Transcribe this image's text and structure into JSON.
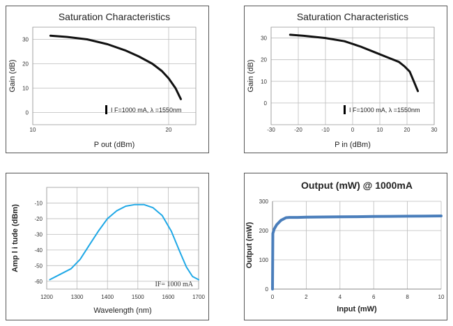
{
  "colors": {
    "curve_dark": "#111111",
    "curve_cyan": "#1fa8e6",
    "curve_blue": "#4a7ebb",
    "grid": "#bbbbbb",
    "frame": "#555555"
  },
  "chart_data": [
    {
      "type": "line",
      "title": "Saturation Characteristics",
      "xlabel": "P out (dBm)",
      "ylabel": "Gain (dB)",
      "annotation": "I F=1000 mA, λ =1550nm",
      "xlim": [
        10,
        22
      ],
      "ylim": [
        -5,
        35
      ],
      "xticks": [
        "10",
        "20"
      ],
      "yticks": [
        "0",
        "10",
        "20",
        "30"
      ],
      "grid": true,
      "series": [
        {
          "x": [
            11.3,
            12.5,
            14.0,
            15.5,
            16.8,
            17.8,
            18.8,
            19.5,
            20.0,
            20.5,
            20.9
          ],
          "y": [
            31.5,
            31.0,
            30.0,
            28.0,
            25.5,
            23.0,
            20.0,
            17.0,
            14.0,
            10.0,
            5.5
          ]
        }
      ]
    },
    {
      "type": "line",
      "title": "Saturation Characteristics",
      "xlabel": "P in (dBm)",
      "ylabel": "Gain (dB)",
      "annotation": "I F=1000 mA, λ =1550nm",
      "xlim": [
        -30,
        30
      ],
      "ylim": [
        -10,
        35
      ],
      "xticks": [
        "-30",
        "-20",
        "-10",
        "0",
        "10",
        "20",
        "30"
      ],
      "yticks": [
        "0",
        "10",
        "20",
        "30"
      ],
      "grid": true,
      "series": [
        {
          "x": [
            -23,
            -18,
            -10,
            -3,
            3,
            8,
            13,
            17,
            19,
            21,
            22.5,
            24
          ],
          "y": [
            31.5,
            31.0,
            30.0,
            28.5,
            26.0,
            23.5,
            21.0,
            19.0,
            17.0,
            14.5,
            10.0,
            5.5
          ]
        }
      ]
    },
    {
      "type": "line",
      "title": "",
      "xlabel": "Wavelength (nm)",
      "ylabel": "Amp l i tude (dBm)",
      "annotation": "IF= 1000 mA",
      "xlim": [
        1200,
        1700
      ],
      "ylim": [
        -65,
        0
      ],
      "xticks": [
        "1200",
        "1300",
        "1400",
        "1500",
        "1600",
        "1700"
      ],
      "yticks": [
        "-10",
        "-20",
        "-30",
        "-40",
        "-50",
        "-60"
      ],
      "grid": true,
      "series": [
        {
          "x": [
            1210,
            1240,
            1280,
            1310,
            1340,
            1370,
            1400,
            1430,
            1460,
            1490,
            1520,
            1550,
            1580,
            1610,
            1640,
            1660,
            1680,
            1700
          ],
          "y": [
            -59,
            -56,
            -52,
            -46,
            -37,
            -28,
            -20,
            -15,
            -12,
            -11,
            -11,
            -13,
            -18,
            -28,
            -42,
            -51,
            -57,
            -59
          ]
        }
      ]
    },
    {
      "type": "line",
      "title": "Output (mW) @ 1000mA",
      "xlabel": "Input (mW)",
      "ylabel": "Output (mW)",
      "xlim": [
        0,
        10
      ],
      "ylim": [
        0,
        300
      ],
      "xticks": [
        "0",
        "2",
        "4",
        "6",
        "8",
        "10"
      ],
      "yticks": [
        "0",
        "100",
        "200",
        "300"
      ],
      "grid": true,
      "series": [
        {
          "x": [
            0,
            0.02,
            0.1,
            0.25,
            0.5,
            0.8,
            1.0,
            1.5,
            2,
            3,
            4,
            5,
            6,
            7,
            8,
            9,
            10
          ],
          "y": [
            0,
            190,
            205,
            220,
            235,
            244,
            245,
            245,
            246,
            246.5,
            247,
            247.5,
            248,
            248.5,
            249,
            249.5,
            250
          ]
        }
      ]
    }
  ]
}
